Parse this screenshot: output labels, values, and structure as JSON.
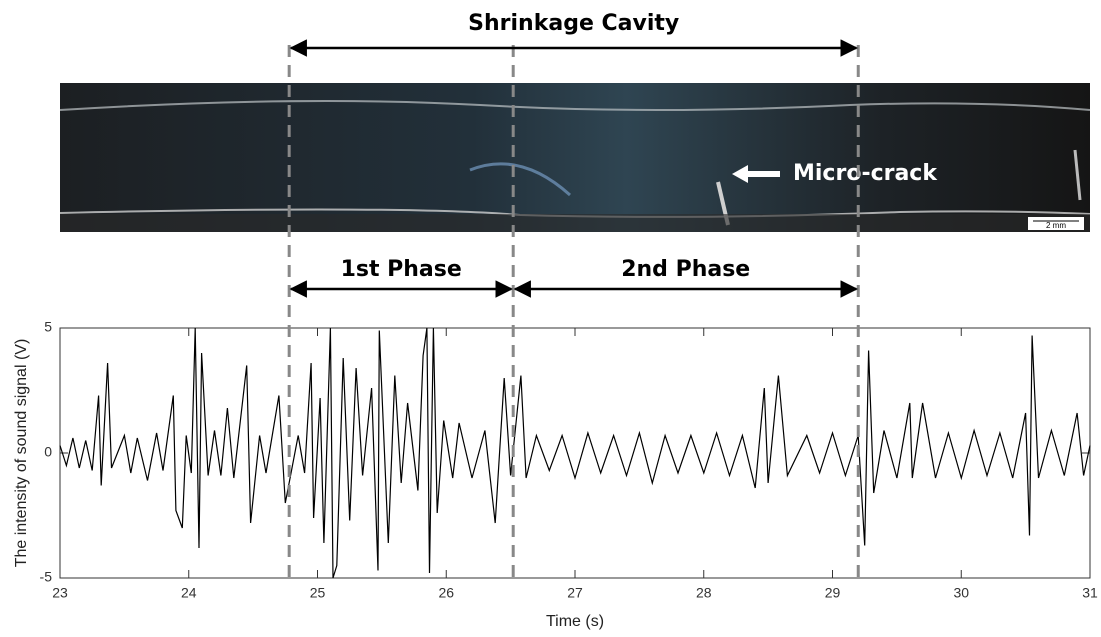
{
  "chart_data": {
    "type": "line",
    "xlabel": "Time (s)",
    "ylabel": "The intensity of sound signal (V)",
    "xlim": [
      23,
      31
    ],
    "xticks": [
      23,
      24,
      25,
      26,
      27,
      28,
      29,
      30,
      31
    ],
    "ylim": [
      -5,
      5
    ],
    "yticks": [
      -5,
      0,
      5
    ],
    "boundaries": [
      24.78,
      26.52,
      29.2
    ],
    "annotations": [
      {
        "text": "Shrinkage Cavity",
        "x": [
          24.78,
          29.2
        ]
      },
      {
        "text": "1st Phase",
        "x": [
          24.78,
          26.52
        ]
      },
      {
        "text": "2nd Phase",
        "x": [
          26.52,
          29.2
        ]
      }
    ],
    "photo_labels": {
      "feature": "Micro-crack",
      "scale": "2 mm"
    },
    "x": [
      23.0,
      23.05,
      23.1,
      23.15,
      23.2,
      23.25,
      23.3,
      23.32,
      23.37,
      23.4,
      23.5,
      23.55,
      23.6,
      23.68,
      23.75,
      23.8,
      23.88,
      23.9,
      23.95,
      23.98,
      24.02,
      24.05,
      24.08,
      24.1,
      24.15,
      24.2,
      24.25,
      24.3,
      24.35,
      24.45,
      24.48,
      24.55,
      24.6,
      24.7,
      24.75,
      24.85,
      24.9,
      24.95,
      24.97,
      25.02,
      25.05,
      25.1,
      25.12,
      25.15,
      25.2,
      25.25,
      25.3,
      25.35,
      25.42,
      25.47,
      25.48,
      25.55,
      25.6,
      25.65,
      25.7,
      25.78,
      25.82,
      25.85,
      25.87,
      25.9,
      25.93,
      25.98,
      26.05,
      26.1,
      26.2,
      26.3,
      26.38,
      26.45,
      26.5,
      26.58,
      26.62,
      26.7,
      26.8,
      26.9,
      27.0,
      27.1,
      27.2,
      27.3,
      27.4,
      27.5,
      27.6,
      27.7,
      27.8,
      27.9,
      28.0,
      28.1,
      28.2,
      28.3,
      28.4,
      28.47,
      28.5,
      28.58,
      28.65,
      28.8,
      28.9,
      29.0,
      29.1,
      29.2,
      29.25,
      29.28,
      29.32,
      29.4,
      29.5,
      29.6,
      29.62,
      29.7,
      29.8,
      29.9,
      30.0,
      30.1,
      30.2,
      30.3,
      30.4,
      30.5,
      30.53,
      30.55,
      30.6,
      30.7,
      30.8,
      30.9,
      30.95,
      31.0
    ],
    "series": [
      {
        "color": "#000000",
        "values": [
          0.3,
          -0.5,
          0.6,
          -0.6,
          0.5,
          -0.7,
          2.3,
          -1.3,
          3.6,
          -0.6,
          0.7,
          -0.8,
          0.6,
          -1.1,
          0.8,
          -0.7,
          2.3,
          -2.3,
          -3.0,
          0.7,
          -0.8,
          5,
          -3.8,
          4.0,
          -0.9,
          0.9,
          -0.9,
          1.8,
          -1.0,
          3.5,
          -2.8,
          0.7,
          -0.8,
          2.3,
          -2.0,
          0.7,
          -0.8,
          3.6,
          -2.6,
          2.2,
          -3.6,
          5,
          -5,
          -4.5,
          3.8,
          -2.7,
          3.4,
          -0.9,
          2.6,
          -4.7,
          4.9,
          -3.6,
          3.1,
          -1.2,
          2.0,
          -1.5,
          3.9,
          5,
          -4.8,
          5,
          -2.4,
          1.3,
          -1.0,
          1.2,
          -1.0,
          0.9,
          -2.8,
          3.0,
          -0.9,
          3.1,
          -1.0,
          0.7,
          -0.7,
          0.7,
          -1.0,
          0.8,
          -0.8,
          0.7,
          -0.9,
          0.8,
          -1.2,
          0.7,
          -0.8,
          0.7,
          -0.8,
          0.8,
          -0.9,
          0.7,
          -1.4,
          2.6,
          -1.2,
          3.1,
          -0.9,
          0.7,
          -0.8,
          0.8,
          -0.9,
          0.7,
          -3.7,
          4.1,
          -1.6,
          0.9,
          -1.0,
          2.0,
          -1.0,
          2.0,
          -1.0,
          0.8,
          -1.0,
          0.9,
          -0.9,
          0.8,
          -1.0,
          1.6,
          -3.3,
          4.7,
          -1.0,
          0.9,
          -0.9,
          1.6,
          -0.9,
          0.3
        ]
      }
    ]
  }
}
